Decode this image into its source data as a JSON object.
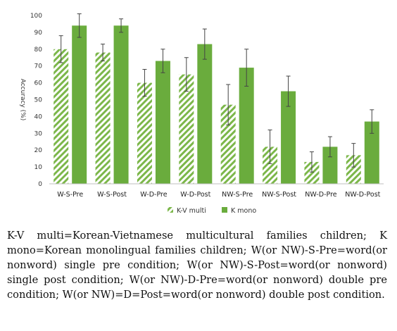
{
  "chart_data": {
    "type": "bar",
    "categories": [
      "W-S-Pre",
      "W-S-Post",
      "W-D-Pre",
      "W-D-Post",
      "NW-S-Pre",
      "NW-S-Post",
      "NW-D-Pre",
      "NW-D-Post"
    ],
    "series": [
      {
        "name": "K-V multi",
        "pattern": "diagonal-hatch",
        "color": "#7cb74a",
        "values": [
          80,
          78,
          60,
          65,
          47,
          22,
          13,
          17
        ],
        "error": [
          8,
          5,
          8,
          10,
          12,
          10,
          6,
          7
        ]
      },
      {
        "name": "K mono",
        "pattern": "solid",
        "color": "#6aac3d",
        "values": [
          94,
          94,
          73,
          83,
          69,
          55,
          22,
          37
        ],
        "error": [
          7,
          4,
          7,
          9,
          11,
          9,
          6,
          7
        ]
      }
    ],
    "ylabel": "Accuracy (%)",
    "ylim": [
      0,
      100
    ],
    "yticks": [
      0,
      10,
      20,
      30,
      40,
      50,
      60,
      70,
      80,
      90,
      100
    ],
    "grid": false,
    "legend_position": "bottom"
  },
  "caption": "K-V multi=Korean-Vietnamese multicultural families children; K mono=Korean monolingual families children; W(or NW)-S-Pre=word(or nonword) single pre condition; W(or NW)-S-Post=word(or nonword) single post condition; W(or NW)-D-Pre=word(or nonword) double pre condition; W(or NW)=D=Post=word(or nonword) double post condition."
}
